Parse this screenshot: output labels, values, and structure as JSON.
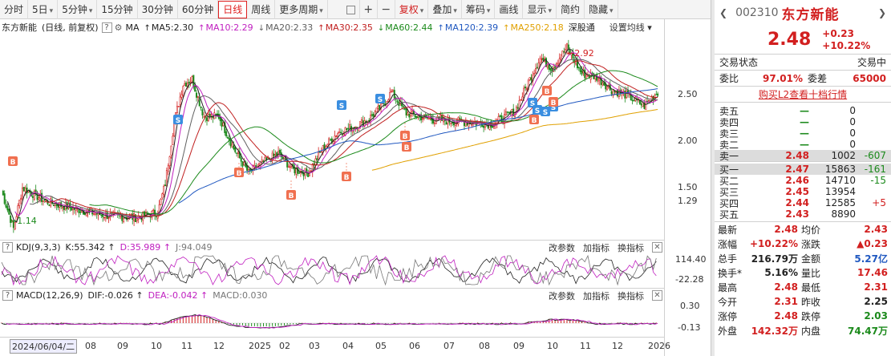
{
  "toolbar": {
    "periods": [
      "分时",
      "5日",
      "5分钟",
      "15分钟",
      "30分钟",
      "60分钟",
      "日线",
      "周线",
      "更多周期"
    ],
    "active_period": "日线",
    "tools": [
      "复权",
      "叠加",
      "筹码",
      "画线",
      "显示",
      "简约",
      "隐藏"
    ]
  },
  "legend": {
    "stock": "东方新能",
    "mode": "(日线, 前复权)",
    "ma_label": "MA",
    "mas": [
      {
        "label": "MA5:2.30",
        "arrow": "↑",
        "color": "#222222"
      },
      {
        "label": "MA10:2.29",
        "arrow": "↑",
        "color": "#c020c0"
      },
      {
        "label": "MA20:2.33",
        "arrow": "↓",
        "color": "#606060"
      },
      {
        "label": "MA30:2.35",
        "arrow": "↑",
        "color": "#c02020"
      },
      {
        "label": "MA60:2.44",
        "arrow": "↓",
        "color": "#1c8a1c"
      },
      {
        "label": "MA120:2.39",
        "arrow": "↑",
        "color": "#2058c0"
      },
      {
        "label": "MA250:2.18",
        "arrow": "↑",
        "color": "#e0a000"
      }
    ],
    "extra": "深股通",
    "setting": "设置均线"
  },
  "price_axis": [
    "2.50",
    "2.00",
    "1.50",
    "1.29"
  ],
  "annotations": {
    "high": "2.92",
    "low": "1.14"
  },
  "kdj": {
    "title": "KDJ(9,3,3)",
    "k": "K:55.342",
    "d": "D:35.989",
    "j": "J:94.049",
    "axis": [
      "114.40",
      "-22.28"
    ]
  },
  "macd": {
    "title": "MACD(12,26,9)",
    "dif": "DIF:-0.026",
    "dea": "DEA:-0.042",
    "macd": "MACD:0.030",
    "axis": [
      "0.30",
      "-0.13"
    ]
  },
  "sub_buttons": [
    "改参数",
    "加指标",
    "换指标"
  ],
  "dates": {
    "current": "2024/06/04/二",
    "labels": [
      "08",
      "09",
      "10",
      "11",
      "12",
      "2025",
      "02",
      "03",
      "04",
      "05",
      "06",
      "07",
      "08",
      "09",
      "10",
      "11",
      "12",
      "2026"
    ]
  },
  "quote": {
    "code": "002310",
    "name": "东方新能",
    "price": "2.48",
    "change": "+0.23",
    "change_pct": "+10.22%",
    "status_label": "交易状态",
    "status_value": "交易中",
    "weibi_label": "委比",
    "weibi_value": "97.01%",
    "weicha_label": "委差",
    "weicha_value": "65000",
    "l2_link": "购买L2查看十档行情",
    "asks": [
      {
        "label": "卖五",
        "price": "—",
        "vol": "0",
        "delta": ""
      },
      {
        "label": "卖四",
        "price": "—",
        "vol": "0",
        "delta": ""
      },
      {
        "label": "卖三",
        "price": "—",
        "vol": "0",
        "delta": ""
      },
      {
        "label": "卖二",
        "price": "—",
        "vol": "0",
        "delta": ""
      },
      {
        "label": "卖一",
        "price": "2.48",
        "vol": "1002",
        "delta": "-607"
      }
    ],
    "bids": [
      {
        "label": "买一",
        "price": "2.47",
        "vol": "15863",
        "delta": "-161"
      },
      {
        "label": "买二",
        "price": "2.46",
        "vol": "14710",
        "delta": "-15"
      },
      {
        "label": "买三",
        "price": "2.45",
        "vol": "13954",
        "delta": ""
      },
      {
        "label": "买四",
        "price": "2.44",
        "vol": "12585",
        "delta": "+5"
      },
      {
        "label": "买五",
        "price": "2.43",
        "vol": "8890",
        "delta": ""
      }
    ],
    "stats": [
      {
        "l1": "最新",
        "v1": "2.48",
        "c1": "red",
        "l2": "均价",
        "v2": "2.43",
        "c2": "red"
      },
      {
        "l1": "涨幅",
        "v1": "+10.22%",
        "c1": "red",
        "l2": "涨跌",
        "v2": "▲0.23",
        "c2": "red"
      },
      {
        "l1": "总手",
        "v1": "216.79万",
        "c1": "dark",
        "l2": "金额",
        "v2": "5.27亿",
        "c2": "blue"
      },
      {
        "l1": "换手*",
        "v1": "5.16%",
        "c1": "dark",
        "l2": "量比",
        "v2": "17.46",
        "c2": "red"
      },
      {
        "l1": "最高",
        "v1": "2.48",
        "c1": "red",
        "l2": "最低",
        "v2": "2.31",
        "c2": "red"
      },
      {
        "l1": "今开",
        "v1": "2.31",
        "c1": "red",
        "l2": "昨收",
        "v2": "2.25",
        "c2": "dark"
      },
      {
        "l1": "涨停",
        "v1": "2.48",
        "c1": "red",
        "l2": "跌停",
        "v2": "2.03",
        "c2": "green"
      },
      {
        "l1": "外盘",
        "v1": "142.32万",
        "c1": "red",
        "l2": "内盘",
        "v2": "74.47万",
        "c2": "green"
      }
    ]
  }
}
